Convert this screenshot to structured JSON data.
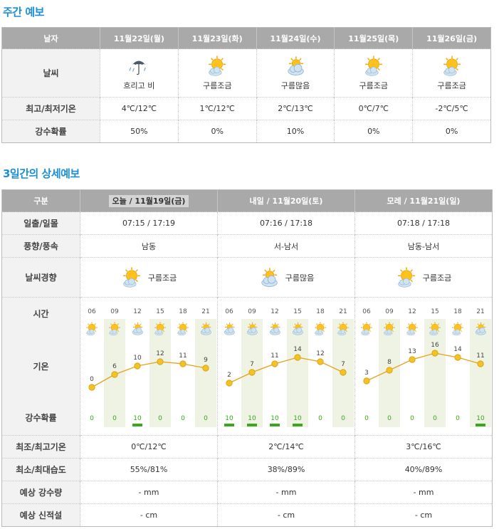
{
  "weekly": {
    "title": "주간 예보",
    "header_label": "날자",
    "row_labels": {
      "weather": "날씨",
      "temp": "최고/최저기온",
      "rain": "강수확률"
    },
    "days": [
      {
        "date": "11월22일(월)",
        "icon": "umbrella-rain-icon",
        "weather": "흐리고 비",
        "temp": "4℃/12℃",
        "rain": "50%"
      },
      {
        "date": "11월23일(화)",
        "icon": "sun-cloud-icon",
        "weather": "구름조금",
        "temp": "1℃/12℃",
        "rain": "0%"
      },
      {
        "date": "11월24일(수)",
        "icon": "cloud-sun-icon",
        "weather": "구름많음",
        "temp": "2℃/13℃",
        "rain": "10%"
      },
      {
        "date": "11월25일(목)",
        "icon": "sun-cloud-icon",
        "weather": "구름조금",
        "temp": "0℃/7℃",
        "rain": "0%"
      },
      {
        "date": "11월26일(금)",
        "icon": "sun-cloud-icon",
        "weather": "구름조금",
        "temp": "-2℃/5℃",
        "rain": "0%"
      }
    ]
  },
  "detail": {
    "title": "3일간의 상세예보",
    "header_label": "구분",
    "row_labels": {
      "sun": "일출/일몰",
      "wind": "풍향/풍속",
      "trend": "날씨경향",
      "time": "시간",
      "temp": "기온",
      "rain": "강수확률",
      "minmax": "최조/최고기온",
      "humidity": "최소/최대습도",
      "precip": "예상 강수량",
      "snow": "예상 신적설"
    },
    "days": [
      {
        "header": "오늘 / 11월19일(금)",
        "sun": "07:15 / 17:19",
        "wind": "남동",
        "trend_icon": "sun-cloud-icon",
        "trend": "구름조금",
        "minmax": "0℃/12℃",
        "humidity": "55%/81%",
        "precip": "- mm",
        "snow": "- cm"
      },
      {
        "header": "내일 / 11월20일(토)",
        "sun": "07:16 / 17:18",
        "wind": "서-남서",
        "trend_icon": "cloud-sun-icon",
        "trend": "구름많음",
        "minmax": "2℃/14℃",
        "humidity": "38%/89%",
        "precip": "- mm",
        "snow": "- cm"
      },
      {
        "header": "모레 / 11월21일(일)",
        "sun": "07:18 / 17:18",
        "wind": "남동-남서",
        "trend_icon": "sun-cloud-icon",
        "trend": "구름조금",
        "minmax": "3℃/16℃",
        "humidity": "40%/89%",
        "precip": "- mm",
        "snow": "- cm"
      }
    ]
  },
  "chart_data": {
    "type": "line",
    "hours": [
      "06",
      "09",
      "12",
      "15",
      "18",
      "21"
    ],
    "days": [
      {
        "temps": [
          0,
          6,
          10,
          12,
          11,
          9
        ],
        "rain": [
          0,
          0,
          10,
          0,
          0,
          0
        ],
        "icons": [
          "sun-cloud-icon",
          "sun-cloud-icon",
          "cloud-sun-icon",
          "sun-cloud-icon",
          "sun-cloud-icon",
          "cloud-sun-icon"
        ]
      },
      {
        "temps": [
          2,
          7,
          11,
          14,
          12,
          7
        ],
        "rain": [
          10,
          10,
          10,
          10,
          0,
          0
        ],
        "icons": [
          "cloud-sun-icon",
          "cloud-sun-icon",
          "cloud-sun-icon",
          "cloud-sun-icon",
          "sun-cloud-icon",
          "sun-cloud-icon"
        ]
      },
      {
        "temps": [
          3,
          8,
          13,
          16,
          14,
          11
        ],
        "rain": [
          0,
          0,
          0,
          0,
          0,
          10
        ],
        "icons": [
          "sun-cloud-icon",
          "sun-cloud-icon",
          "sun-cloud-icon",
          "sun-cloud-icon",
          "sun-cloud-icon",
          "cloud-sun-icon"
        ]
      }
    ],
    "y_range": [
      0,
      16
    ],
    "colors": {
      "line": "#e6a21a",
      "point": "#f3c321",
      "rain_bar": "#39a81e",
      "shade": "#eef3e4"
    }
  }
}
